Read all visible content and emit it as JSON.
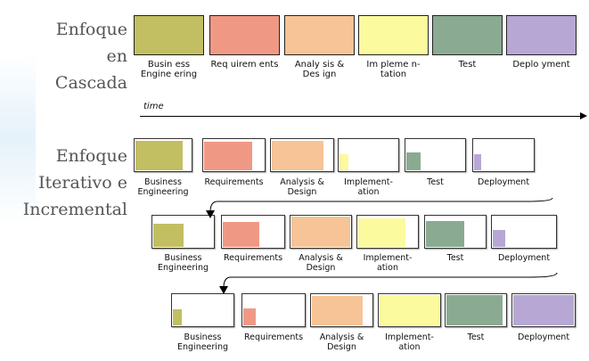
{
  "labels": {
    "waterfall": "Enfoque\nen\nCascada",
    "iterative": "Enfoque\nIterativo e\nIncremental",
    "time": "time"
  },
  "colors": {
    "business": "#c2be62",
    "requirements": "#ef9985",
    "analysis": "#f6c496",
    "implementation": "#fbfa9e",
    "test": "#8aab91",
    "deployment": "#b7a7d4"
  },
  "waterfall_phases": [
    {
      "label": "Busin ess\nEngine ering",
      "color_key": "business"
    },
    {
      "label": "Req uirem ents",
      "color_key": "requirements"
    },
    {
      "label": "Analy sis &\nDes ign",
      "color_key": "analysis"
    },
    {
      "label": "Im pleme n-\ntation",
      "color_key": "implementation"
    },
    {
      "label": "Test",
      "color_key": "test"
    },
    {
      "label": "Deplo yment",
      "color_key": "deployment"
    }
  ],
  "iterations": [
    {
      "phases": [
        {
          "label": "Business\nEngineering",
          "color_key": "business",
          "fill": 0.85
        },
        {
          "label": "Requirements",
          "color_key": "requirements",
          "fill": 0.8
        },
        {
          "label": "Analysis &\nDesign",
          "color_key": "analysis",
          "fill": 0.85
        },
        {
          "label": "Implement-\nation",
          "color_key": "implementation",
          "fill": 0.15
        },
        {
          "label": "Test",
          "color_key": "test",
          "fill": 0.25
        },
        {
          "label": "Deployment",
          "color_key": "deployment",
          "fill": 0.12
        }
      ]
    },
    {
      "phases": [
        {
          "label": "Business\nEngineering",
          "color_key": "business",
          "fill": 0.5
        },
        {
          "label": "Requirements",
          "color_key": "requirements",
          "fill": 0.6
        },
        {
          "label": "Analysis &\nDesign",
          "color_key": "analysis",
          "fill": 1.0
        },
        {
          "label": "Implement-\nation",
          "color_key": "implementation",
          "fill": 0.8
        },
        {
          "label": "Test",
          "color_key": "test",
          "fill": 0.65
        },
        {
          "label": "Deployment",
          "color_key": "deployment",
          "fill": 0.2
        }
      ]
    },
    {
      "phases": [
        {
          "label": "Business\nEngineering",
          "color_key": "business",
          "fill": 0.15
        },
        {
          "label": "Requirements",
          "color_key": "requirements",
          "fill": 0.2
        },
        {
          "label": "Analysis &\nDesign",
          "color_key": "analysis",
          "fill": 0.85
        },
        {
          "label": "Implement-\nation",
          "color_key": "implementation",
          "fill": 1.0
        },
        {
          "label": "Test",
          "color_key": "test",
          "fill": 0.95
        },
        {
          "label": "Deployment",
          "color_key": "deployment",
          "fill": 1.0
        }
      ]
    }
  ]
}
